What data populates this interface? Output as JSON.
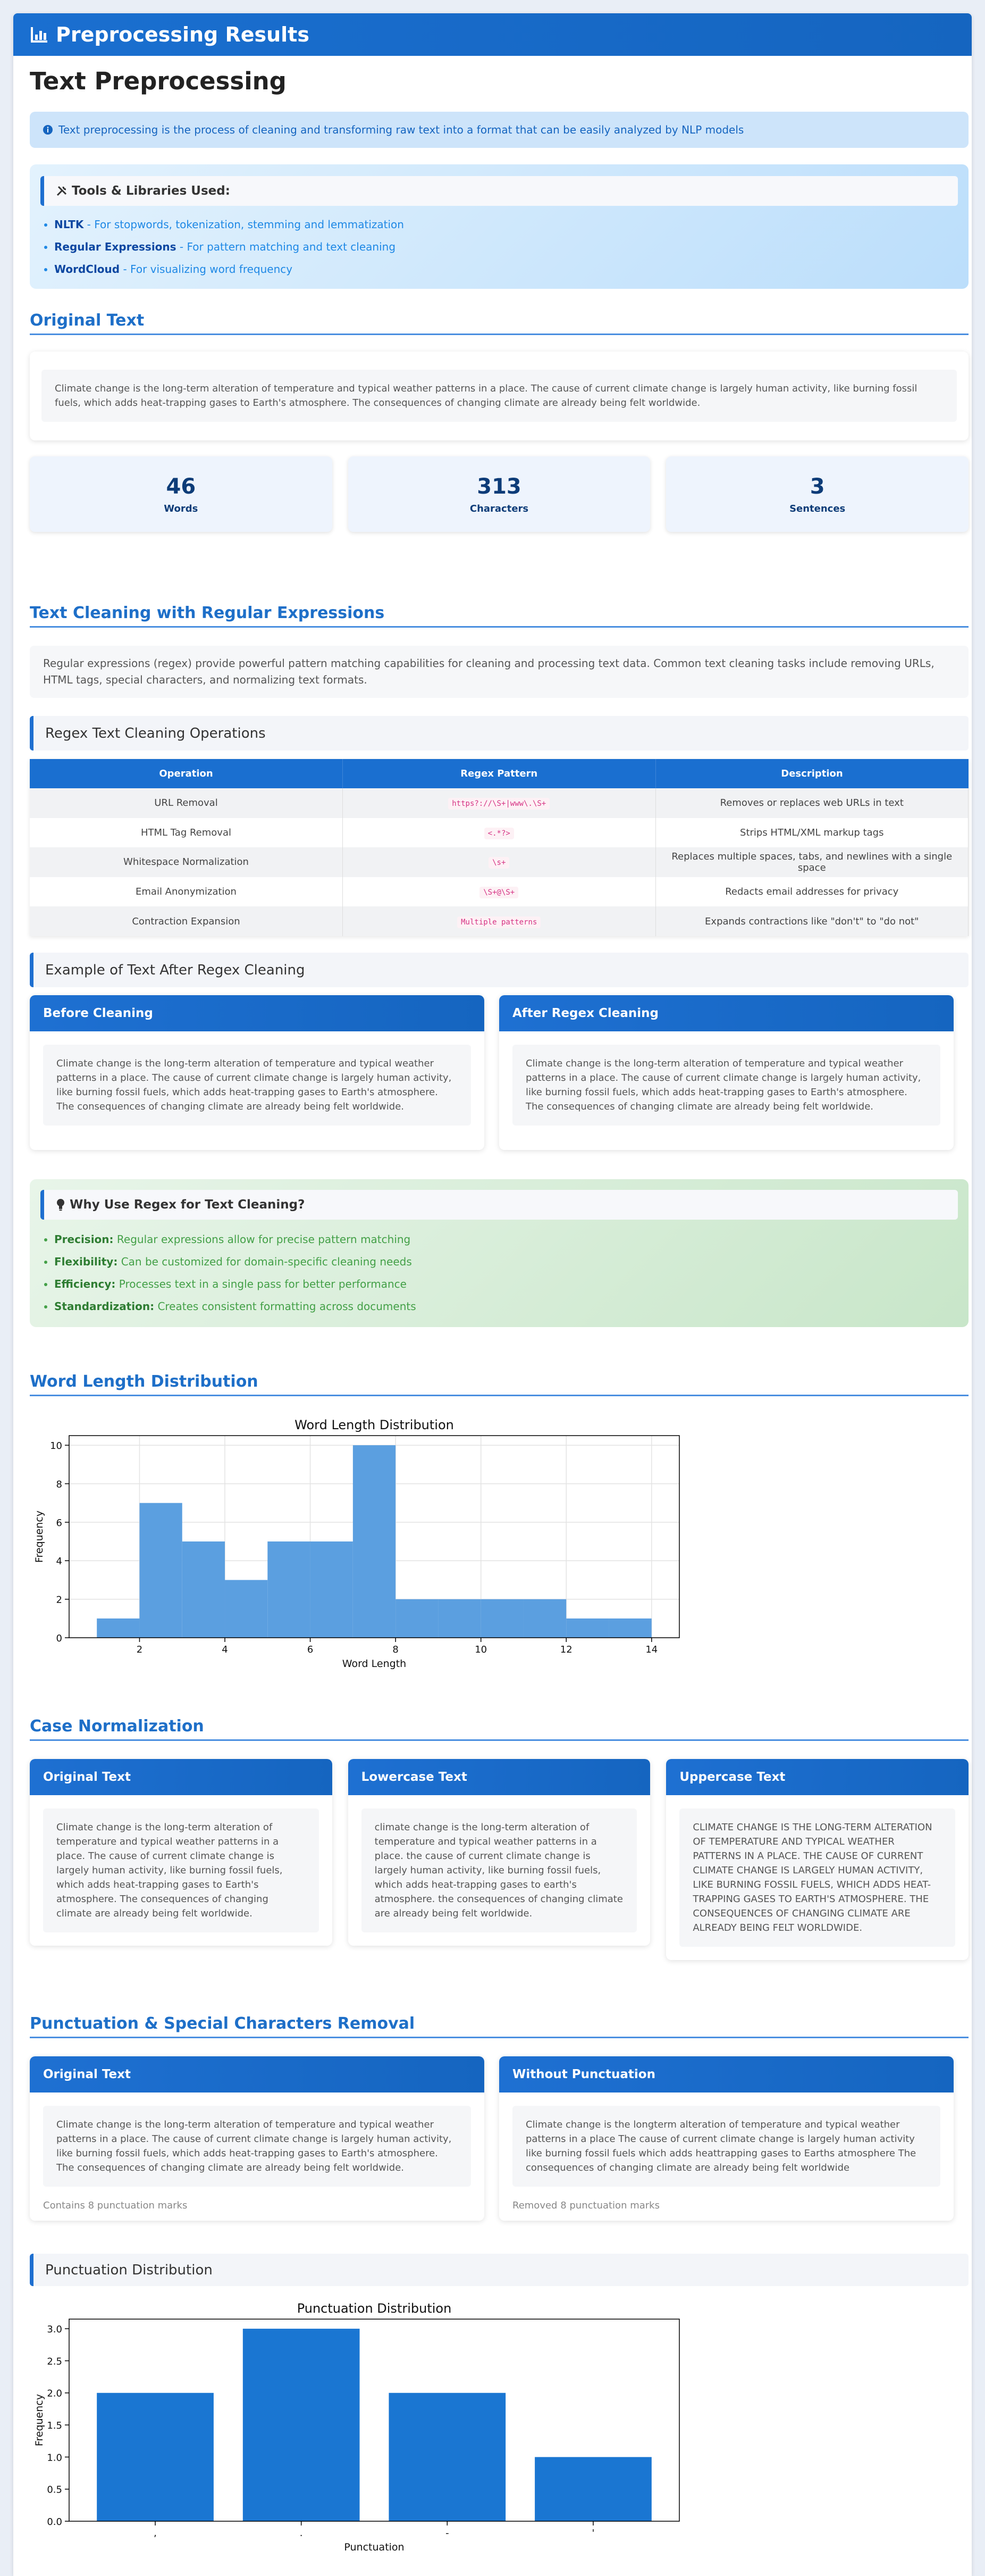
{
  "header": {
    "title": "Preprocessing Results"
  },
  "page_title": "Text Preprocessing",
  "info": "Text preprocessing is the process of cleaning and transforming raw text into a format that can be easily analyzed by NLP models",
  "tools": {
    "title": "Tools & Libraries Used:",
    "items": [
      {
        "name": "NLTK",
        "desc": "- For stopwords, tokenization, stemming and lemmatization"
      },
      {
        "name": "Regular Expressions",
        "desc": "- For pattern matching and text cleaning"
      },
      {
        "name": "WordCloud",
        "desc": "- For visualizing word frequency"
      }
    ]
  },
  "original": {
    "title": "Original Text",
    "text": "Climate change is the long-term alteration of temperature and typical weather patterns in a place. The cause of current climate change is largely human activity, like burning fossil fuels, which adds heat-trapping gases to Earth's atmosphere. The consequences of changing climate are already being felt worldwide.",
    "stats": [
      {
        "value": 46,
        "label": "Words"
      },
      {
        "value": 313,
        "label": "Characters"
      },
      {
        "value": 3,
        "label": "Sentences"
      }
    ]
  },
  "regex": {
    "title": "Text Cleaning with Regular Expressions",
    "description": "Regular expressions (regex) provide powerful pattern matching capabilities for cleaning and processing text data. Common text cleaning tasks include removing URLs, HTML tags, special characters, and normalizing text formats.",
    "operations_title": "Regex Text Cleaning Operations",
    "table": {
      "header": [
        "Operation",
        "Regex Pattern",
        "Description"
      ],
      "rows": [
        [
          "URL Removal",
          "https?://\\S+|www\\.\\S+",
          "Removes or replaces web URLs in text"
        ],
        [
          "HTML Tag Removal",
          "<.*?>",
          "Strips HTML/XML markup tags"
        ],
        [
          "Whitespace Normalization",
          "\\s+",
          "Replaces multiple spaces, tabs, and newlines with a single space"
        ],
        [
          "Email Anonymization",
          "\\S+@\\S+",
          "Redacts email addresses for privacy"
        ],
        [
          "Contraction Expansion",
          "Multiple patterns",
          "Expands contractions like \"don't\" to \"do not\""
        ]
      ]
    },
    "example_title": "Example of Text After Regex Cleaning",
    "before": {
      "title": "Before Cleaning",
      "text": "Climate change is the long-term alteration of temperature and typical weather patterns in a place. The cause of current climate change is largely human activity, like burning fossil fuels, which adds heat-trapping gases to Earth's atmosphere. The consequences of changing climate are already being felt worldwide."
    },
    "after": {
      "title": "After Regex Cleaning",
      "text": "Climate change is the long-term alteration of temperature and typical weather patterns in a place. The cause of current climate change is largely human activity, like burning fossil fuels, which adds heat-trapping gases to Earth's atmosphere. The consequences of changing climate are already being felt worldwide."
    },
    "why": {
      "title": "Why Use Regex for Text Cleaning?",
      "items": [
        {
          "term": "Precision:",
          "desc": "Regular expressions allow for precise pattern matching"
        },
        {
          "term": "Flexibility:",
          "desc": "Can be customized for domain-specific cleaning needs"
        },
        {
          "term": "Efficiency:",
          "desc": "Processes text in a single pass for better performance"
        },
        {
          "term": "Standardization:",
          "desc": "Creates consistent formatting across documents"
        }
      ]
    }
  },
  "word_length": {
    "title": "Word Length Distribution"
  },
  "case": {
    "title": "Case Normalization",
    "cards": [
      {
        "title": "Original Text",
        "text": "Climate change is the long-term alteration of temperature and typical weather patterns in a place. The cause of current climate change is largely human activity, like burning fossil fuels, which adds heat-trapping gases to Earth's atmosphere. The consequences of changing climate are already being felt worldwide."
      },
      {
        "title": "Lowercase Text",
        "text": "climate change is the long-term alteration of temperature and typical weather patterns in a place. the cause of current climate change is largely human activity, like burning fossil fuels, which adds heat-trapping gases to earth's atmosphere. the consequences of changing climate are already being felt worldwide."
      },
      {
        "title": "Uppercase Text",
        "text": "CLIMATE CHANGE IS THE LONG-TERM ALTERATION OF TEMPERATURE AND TYPICAL WEATHER PATTERNS IN A PLACE. THE CAUSE OF CURRENT CLIMATE CHANGE IS LARGELY HUMAN ACTIVITY, LIKE BURNING FOSSIL FUELS, WHICH ADDS HEAT-TRAPPING GASES TO EARTH'S ATMOSPHERE. THE CONSEQUENCES OF CHANGING CLIMATE ARE ALREADY BEING FELT WORLDWIDE."
      }
    ]
  },
  "punctuation": {
    "title": "Punctuation & Special Characters Removal",
    "cards": [
      {
        "title": "Original Text",
        "text": "Climate change is the long-term alteration of temperature and typical weather patterns in a place. The cause of current climate change is largely human activity, like burning fossil fuels, which adds heat-trapping gases to Earth's atmosphere. The consequences of changing climate are already being felt worldwide.",
        "note": "Contains 8 punctuation marks"
      },
      {
        "title": "Without Punctuation",
        "text": "Climate change is the longterm alteration of temperature and typical weather patterns in a place The cause of current climate change is largely human activity like burning fossil fuels which adds heattrapping gases to Earths atmosphere The consequences of changing climate are already being felt worldwide",
        "note": "Removed 8 punctuation marks"
      }
    ],
    "distribution_title": "Punctuation Distribution"
  },
  "chart_data": [
    {
      "type": "histogram",
      "title": "Word Length Distribution",
      "x_label": "Word Length",
      "y_label": "Frequency",
      "bins": [
        1,
        2,
        3,
        4,
        5,
        6,
        7,
        8,
        9,
        10,
        11,
        12,
        13,
        14
      ],
      "values": [
        1,
        7,
        5,
        3,
        5,
        5,
        10,
        2,
        2,
        2,
        2,
        1,
        1
      ],
      "color": "#5b9fe0",
      "xlim": [
        0.35,
        14.65
      ],
      "xticks": [
        2,
        4,
        6,
        8,
        10,
        12,
        14
      ],
      "ylim": [
        0,
        10.5
      ],
      "yticks": [
        0,
        2,
        4,
        6,
        8,
        10
      ],
      "grid": true
    },
    {
      "type": "bar",
      "title": "Punctuation Distribution",
      "x_label": "Punctuation",
      "y_label": "Frequency",
      "categories": [
        ",",
        ".",
        "-",
        "'"
      ],
      "values": [
        2,
        3,
        2,
        1
      ],
      "color": "#1a76d2",
      "ylim": [
        0,
        3.15
      ],
      "yticks": [
        {
          "value": 0,
          "label": "0.0"
        },
        0.5,
        {
          "value": 1,
          "label": "1.0"
        },
        1.5,
        {
          "value": 2,
          "label": "2.0"
        },
        2.5,
        {
          "value": 3,
          "label": "3.0"
        }
      ],
      "grid": false
    }
  ]
}
